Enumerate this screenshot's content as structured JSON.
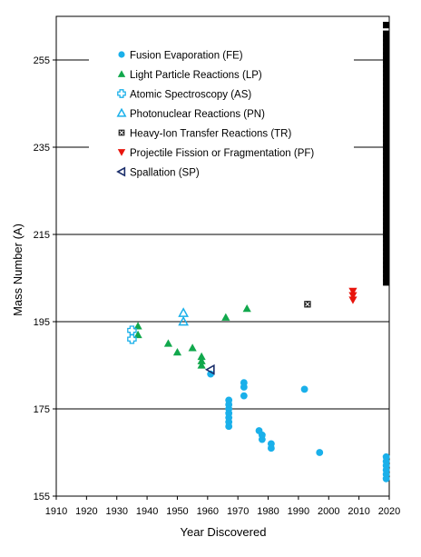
{
  "chart_data": {
    "type": "scatter",
    "title": "",
    "xlabel": "Year Discovered",
    "ylabel": "Mass Number (A)",
    "xlim": [
      1910,
      2020
    ],
    "ylim": [
      155,
      265
    ],
    "xticks": [
      "1910",
      "1920",
      "1930",
      "1940",
      "1950",
      "1960",
      "1970",
      "1980",
      "1990",
      "2000",
      "2010",
      "2020"
    ],
    "yticks": [
      "155",
      "175",
      "195",
      "215",
      "235",
      "255"
    ],
    "grid": "horizontal",
    "legend_position": "top-left",
    "series": [
      {
        "name": "Fusion Evaporation (FE)",
        "marker": "circle",
        "color": "#1ab0ea",
        "points": [
          [
            1961,
            183
          ],
          [
            1967,
            177
          ],
          [
            1967,
            176
          ],
          [
            1967,
            175
          ],
          [
            1967,
            174
          ],
          [
            1967,
            173
          ],
          [
            1967,
            172
          ],
          [
            1967,
            171
          ],
          [
            1972,
            181
          ],
          [
            1972,
            180
          ],
          [
            1972,
            178
          ],
          [
            1977,
            170
          ],
          [
            1978,
            169
          ],
          [
            1978,
            168
          ],
          [
            1981,
            167
          ],
          [
            1981,
            166
          ],
          [
            1992,
            179.5
          ],
          [
            1997,
            165
          ],
          [
            2019,
            164
          ],
          [
            2019,
            163
          ],
          [
            2019,
            162
          ],
          [
            2019,
            161
          ],
          [
            2019,
            160
          ],
          [
            2019,
            159
          ]
        ]
      },
      {
        "name": "Light Particle Reactions (LP)",
        "marker": "triangle-up",
        "color": "#11a84c",
        "points": [
          [
            1937,
            194
          ],
          [
            1937,
            192
          ],
          [
            1947,
            190
          ],
          [
            1950,
            188
          ],
          [
            1955,
            189
          ],
          [
            1958,
            187
          ],
          [
            1958,
            186
          ],
          [
            1958,
            185
          ],
          [
            1966,
            196
          ],
          [
            1973,
            198
          ]
        ]
      },
      {
        "name": "Atomic Spectroscopy (AS)",
        "marker": "plus",
        "color": "#1ab0ea",
        "points": [
          [
            1935,
            193
          ],
          [
            1935,
            191
          ]
        ]
      },
      {
        "name": "Photonuclear Reactions (PN)",
        "marker": "triangle-up-open",
        "color": "#1ab0ea",
        "points": [
          [
            1952,
            197
          ],
          [
            1952,
            195
          ]
        ]
      },
      {
        "name": "Heavy-Ion Transfer Reactions (TR)",
        "marker": "x-square",
        "color": "#222222",
        "points": [
          [
            1993,
            199
          ]
        ]
      },
      {
        "name": "Projectile Fission or Fragmentation (PF)",
        "marker": "triangle-down",
        "color": "#e8140c",
        "points": [
          [
            2008,
            202
          ],
          [
            2008,
            201
          ],
          [
            2008,
            200
          ]
        ]
      },
      {
        "name": "Spallation (SP)",
        "marker": "triangle-left-open",
        "color": "#1a2d6a",
        "points": [
          [
            1961,
            184
          ]
        ]
      },
      {
        "name": "",
        "marker": "square",
        "color": "#000000",
        "points": [
          [
            2019,
            204
          ],
          [
            2019,
            205
          ],
          [
            2019,
            206
          ],
          [
            2019,
            207
          ],
          [
            2019,
            208
          ],
          [
            2019,
            209
          ],
          [
            2019,
            210
          ],
          [
            2019,
            211
          ],
          [
            2019,
            212
          ],
          [
            2019,
            213
          ],
          [
            2019,
            214
          ],
          [
            2019,
            215
          ],
          [
            2019,
            216
          ],
          [
            2019,
            217
          ],
          [
            2019,
            218
          ],
          [
            2019,
            219
          ],
          [
            2019,
            220
          ],
          [
            2019,
            221
          ],
          [
            2019,
            222
          ],
          [
            2019,
            223
          ],
          [
            2019,
            224
          ],
          [
            2019,
            225
          ],
          [
            2019,
            226
          ],
          [
            2019,
            227
          ],
          [
            2019,
            228
          ],
          [
            2019,
            229
          ],
          [
            2019,
            230
          ],
          [
            2019,
            231
          ],
          [
            2019,
            232
          ],
          [
            2019,
            233
          ],
          [
            2019,
            234
          ],
          [
            2019,
            235
          ],
          [
            2019,
            236
          ],
          [
            2019,
            237
          ],
          [
            2019,
            238
          ],
          [
            2019,
            239
          ],
          [
            2019,
            240
          ],
          [
            2019,
            241
          ],
          [
            2019,
            242
          ],
          [
            2019,
            243
          ],
          [
            2019,
            244
          ],
          [
            2019,
            245
          ],
          [
            2019,
            246
          ],
          [
            2019,
            247
          ],
          [
            2019,
            248
          ],
          [
            2019,
            249
          ],
          [
            2019,
            250
          ],
          [
            2019,
            251
          ],
          [
            2019,
            252
          ],
          [
            2019,
            253
          ],
          [
            2019,
            254
          ],
          [
            2019,
            255
          ],
          [
            2019,
            256
          ],
          [
            2019,
            257
          ],
          [
            2019,
            258
          ],
          [
            2019,
            259
          ],
          [
            2019,
            260
          ],
          [
            2019,
            261
          ],
          [
            2019,
            263
          ]
        ]
      }
    ]
  }
}
